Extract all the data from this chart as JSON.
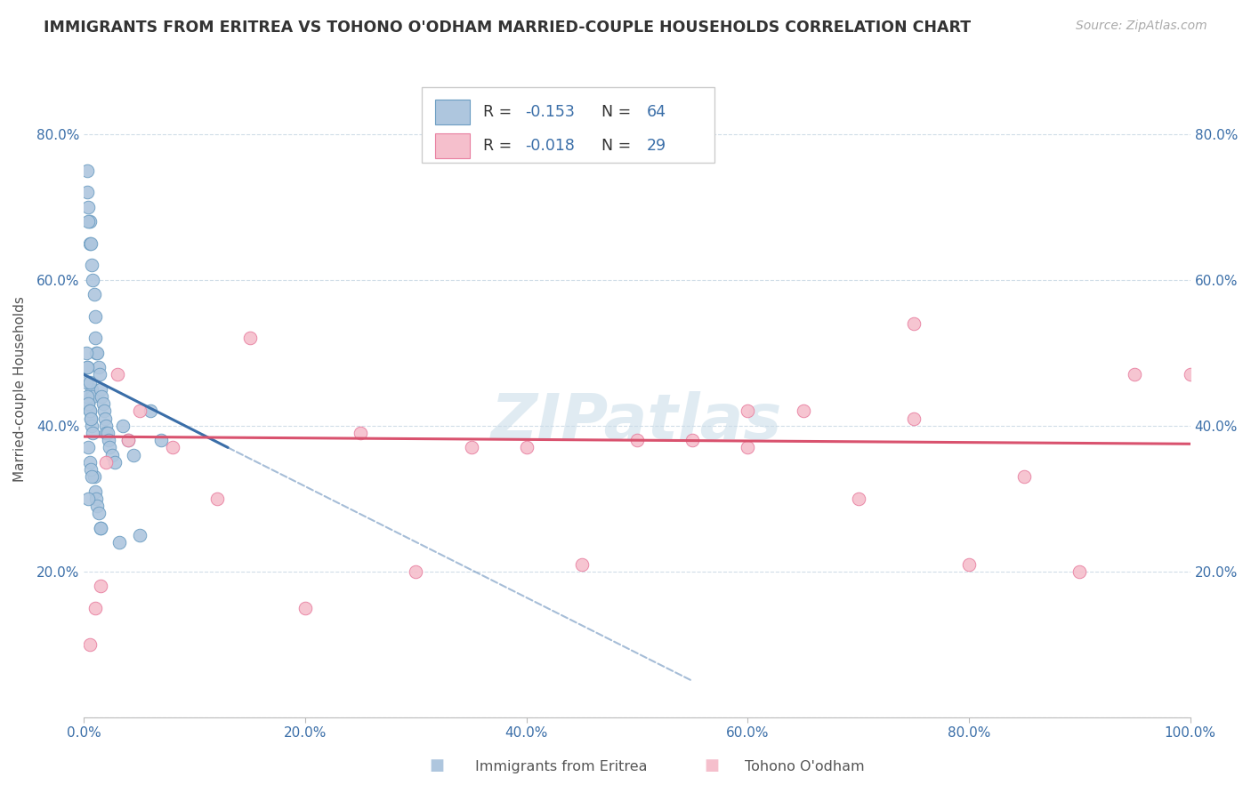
{
  "title": "IMMIGRANTS FROM ERITREA VS TOHONO O'ODHAM MARRIED-COUPLE HOUSEHOLDS CORRELATION CHART",
  "source": "Source: ZipAtlas.com",
  "ylabel_label": "Married-couple Households",
  "xlim": [
    0,
    100
  ],
  "ylim": [
    0,
    90
  ],
  "xticks": [
    0,
    20,
    40,
    60,
    80,
    100
  ],
  "yticks": [
    0,
    20,
    40,
    60,
    80
  ],
  "xticklabels": [
    "0.0%",
    "20.0%",
    "40.0%",
    "60.0%",
    "80.0%",
    "100.0%"
  ],
  "yticklabels": [
    "",
    "20.0%",
    "40.0%",
    "60.0%",
    "80.0%"
  ],
  "blue_R": -0.153,
  "blue_N": 64,
  "pink_R": -0.018,
  "pink_N": 29,
  "blue_fill": "#aec6de",
  "blue_edge": "#6b9dc2",
  "pink_fill": "#f5bfcc",
  "pink_edge": "#e87fa0",
  "blue_line_color": "#3a6ea8",
  "pink_line_color": "#d9526e",
  "watermark_color": "#c8dce8",
  "grid_color": "#d0dde8",
  "blue_x": [
    0.3,
    0.3,
    0.4,
    0.4,
    0.5,
    0.5,
    0.5,
    0.6,
    0.6,
    0.6,
    0.7,
    0.7,
    0.7,
    0.8,
    0.8,
    0.8,
    0.9,
    0.9,
    1.0,
    1.0,
    1.0,
    1.1,
    1.1,
    1.2,
    1.2,
    1.3,
    1.3,
    1.4,
    1.5,
    1.5,
    1.6,
    1.7,
    1.8,
    1.9,
    2.0,
    2.0,
    2.1,
    2.2,
    2.3,
    2.5,
    2.8,
    3.2,
    3.5,
    4.0,
    4.5,
    5.0,
    6.0,
    7.0,
    0.2,
    0.3,
    0.4,
    0.5,
    0.6,
    0.2,
    0.3,
    0.4,
    0.5,
    0.6,
    0.7,
    1.5,
    0.4,
    0.3,
    0.5,
    0.4
  ],
  "blue_y": [
    72,
    48,
    70,
    43,
    68,
    65,
    42,
    65,
    44,
    41,
    62,
    45,
    40,
    60,
    44,
    39,
    58,
    33,
    55,
    52,
    31,
    50,
    30,
    50,
    29,
    48,
    28,
    47,
    45,
    26,
    44,
    43,
    42,
    41,
    40,
    39,
    39,
    38,
    37,
    36,
    35,
    24,
    40,
    38,
    36,
    25,
    42,
    38,
    46,
    44,
    43,
    42,
    41,
    50,
    48,
    37,
    35,
    34,
    33,
    26,
    30,
    75,
    46,
    68
  ],
  "pink_x": [
    0.5,
    1.0,
    2.0,
    3.0,
    5.0,
    8.0,
    12.0,
    20.0,
    25.0,
    30.0,
    40.0,
    50.0,
    60.0,
    70.0,
    80.0,
    90.0,
    100.0,
    1.5,
    4.0,
    35.0,
    55.0,
    65.0,
    75.0,
    85.0,
    95.0,
    45.0,
    60.0,
    75.0,
    15.0
  ],
  "pink_y": [
    10,
    15,
    35,
    47,
    42,
    37,
    30,
    15,
    39,
    20,
    37,
    38,
    37,
    30,
    21,
    20,
    47,
    18,
    38,
    37,
    38,
    42,
    41,
    33,
    47,
    21,
    42,
    54,
    52
  ],
  "blue_trend_x0": 0,
  "blue_trend_y0": 47,
  "blue_trend_x1": 55,
  "blue_trend_y1": 5,
  "blue_solid_x1": 13,
  "blue_solid_y1": 37,
  "pink_trend_x0": 0,
  "pink_trend_y0": 38.5,
  "pink_trend_x1": 100,
  "pink_trend_y1": 37.5
}
